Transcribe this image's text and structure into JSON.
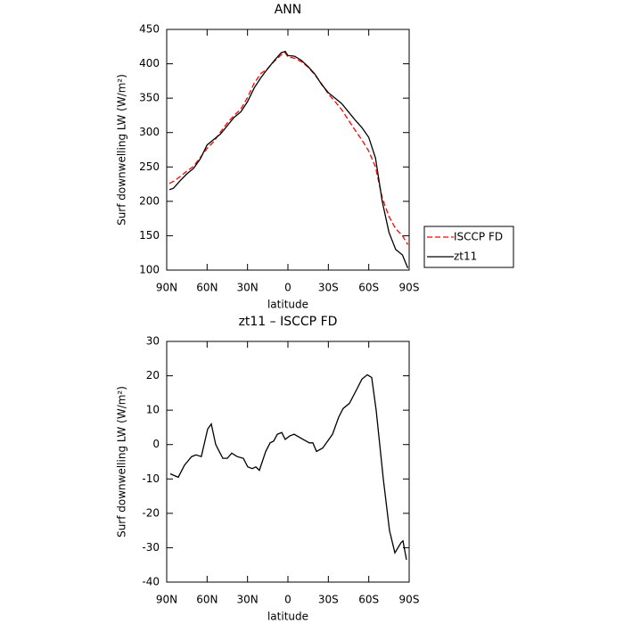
{
  "chart_data": [
    {
      "type": "line",
      "title": "ANN",
      "xlabel": "latitude",
      "ylabel": "Surf downwelling LW (W/m²)",
      "x": [
        88,
        85,
        80,
        75,
        70,
        65,
        60,
        55,
        50,
        45,
        40,
        35,
        30,
        25,
        20,
        15,
        10,
        5,
        2,
        0,
        -5,
        -10,
        -15,
        -20,
        -25,
        -30,
        -35,
        -40,
        -45,
        -50,
        -55,
        -60,
        -65,
        -70,
        -75,
        -80,
        -85,
        -89
      ],
      "series": [
        {
          "name": "ISCCP FD",
          "color": "#ff0000",
          "linestyle": "dashed",
          "values": [
            226,
            229,
            236,
            244,
            251,
            264,
            277,
            287,
            301,
            314,
            325,
            334,
            351,
            372,
            386,
            393,
            404,
            413,
            416,
            410,
            408,
            403,
            395,
            384,
            371,
            356,
            345,
            333,
            318,
            303,
            289,
            273,
            250,
            205,
            178,
            160,
            150,
            137
          ]
        },
        {
          "name": "zt11",
          "color": "#000000",
          "linestyle": "solid",
          "values": [
            217,
            219,
            230,
            240,
            248,
            262,
            282,
            290,
            298,
            310,
            322,
            330,
            345,
            365,
            380,
            393,
            405,
            416,
            418,
            412,
            411,
            405,
            396,
            385,
            370,
            358,
            350,
            342,
            330,
            318,
            307,
            293,
            263,
            200,
            155,
            130,
            122,
            103
          ]
        }
      ],
      "xlim": [
        90,
        -90
      ],
      "xticks": [
        {
          "value": 90,
          "label": "90N"
        },
        {
          "value": 60,
          "label": "60N"
        },
        {
          "value": 30,
          "label": "30N"
        },
        0,
        {
          "value": -30,
          "label": "30S"
        },
        {
          "value": -60,
          "label": "60S"
        },
        {
          "value": -90,
          "label": "90S"
        }
      ],
      "ylim": [
        100,
        450
      ],
      "yticks": [
        100,
        150,
        200,
        250,
        300,
        350,
        400,
        450
      ],
      "legend": "right"
    },
    {
      "type": "line",
      "title": "zt11 – ISCCP FD",
      "xlabel": "latitude",
      "ylabel": "Surf downwelling LW (W/m²)",
      "x": [
        87.4,
        81.4,
        76.8,
        71.5,
        68.2,
        64.3,
        59.6,
        56.9,
        53.6,
        51.0,
        48.3,
        45.0,
        41.7,
        37.7,
        33.1,
        29.8,
        26.5,
        23.8,
        21.2,
        16.5,
        13.2,
        10.6,
        7.9,
        4.6,
        2.0,
        -1.3,
        -4.6,
        -11.3,
        -15.9,
        -18.5,
        -21.2,
        -25.8,
        -33.1,
        -37.7,
        -41.0,
        -45.7,
        -51.0,
        -54.9,
        -58.9,
        -62.2,
        -65.5,
        -70.8,
        -75.4,
        -79.4,
        -84.0,
        -85.4,
        -88.0
      ],
      "series": [
        {
          "color": "#000000",
          "linestyle": "solid",
          "values": [
            -8.5,
            -9.5,
            -6,
            -3.5,
            -3,
            -3.5,
            4.5,
            6,
            0,
            -2,
            -4,
            -4,
            -2.5,
            -3.5,
            -4,
            -6.5,
            -7,
            -6.5,
            -7.5,
            -2,
            0.5,
            1,
            3,
            3.5,
            1.5,
            2.5,
            3,
            1.5,
            0.5,
            0.5,
            -2,
            -1,
            3,
            8,
            10.5,
            12,
            16,
            19,
            20.3,
            19.5,
            10,
            -10,
            -25,
            -31.5,
            -28.5,
            -28,
            -33.5
          ]
        }
      ],
      "xlim": [
        90,
        -90
      ],
      "xticks": [
        {
          "value": 90,
          "label": "90N"
        },
        {
          "value": 60,
          "label": "60N"
        },
        {
          "value": 30,
          "label": "30N"
        },
        0,
        {
          "value": -30,
          "label": "30S"
        },
        {
          "value": -60,
          "label": "60S"
        },
        {
          "value": -90,
          "label": "90S"
        }
      ],
      "ylim": [
        -40,
        30
      ],
      "yticks": [
        -40,
        -30,
        -20,
        -10,
        0,
        10,
        20,
        30
      ]
    }
  ]
}
